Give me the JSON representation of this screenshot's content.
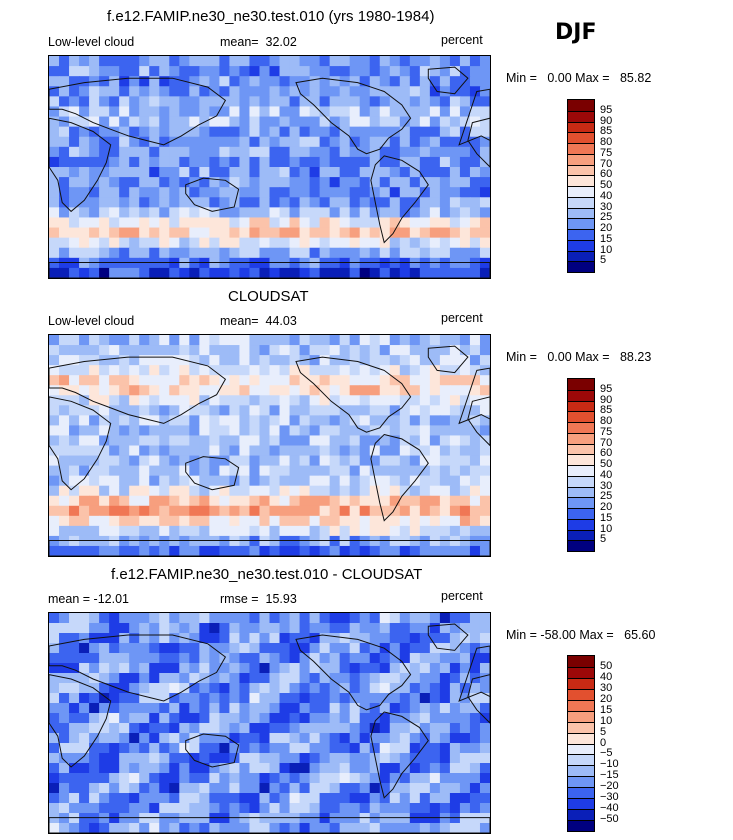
{
  "season": "DJF",
  "colors": {
    "abs": [
      "#000080",
      "#0a1fb8",
      "#1e3ce6",
      "#3c64f0",
      "#6e96f5",
      "#9dbbf7",
      "#c6d8fa",
      "#e8eefc",
      "#fde6da",
      "#fbc3aa",
      "#f79f7e",
      "#f07755",
      "#e2502f",
      "#c82a14",
      "#9c0808",
      "#7a0000"
    ],
    "diff": [
      "#000080",
      "#0a1fb8",
      "#1e3ce6",
      "#3c64f0",
      "#6e96f5",
      "#9dbbf7",
      "#c6d8fa",
      "#e8eefc",
      "#fde6da",
      "#fbc3aa",
      "#f79f7e",
      "#f07755",
      "#e2502f",
      "#c82a14",
      "#9c0808",
      "#7a0000"
    ]
  },
  "chart_data": [
    {
      "type": "heatmap",
      "title": "f.e12.FAMIP.ne30_ne30.test.010 (yrs 1980-1984)",
      "left_label": "Low-level cloud",
      "mean_label": "mean=",
      "mean_value": "32.02",
      "units": "percent",
      "min_label": "Min =",
      "min_value": "0.00",
      "max_label": "Max =",
      "max_value": "85.82",
      "colorbar_levels": [
        "95",
        "90",
        "85",
        "80",
        "75",
        "70",
        "60",
        "50",
        "40",
        "30",
        "25",
        "20",
        "15",
        "10",
        "5"
      ]
    },
    {
      "type": "heatmap",
      "title": "CLOUDSAT",
      "left_label": "Low-level cloud",
      "mean_label": "mean=",
      "mean_value": "44.03",
      "units": "percent",
      "min_label": "Min =",
      "min_value": "0.00",
      "max_label": "Max =",
      "max_value": "88.23",
      "colorbar_levels": [
        "95",
        "90",
        "85",
        "80",
        "75",
        "70",
        "60",
        "50",
        "40",
        "30",
        "25",
        "20",
        "15",
        "10",
        "5"
      ]
    },
    {
      "type": "heatmap",
      "title": "f.e12.FAMIP.ne30_ne30.test.010 - CLOUDSAT",
      "mean_label": "mean =",
      "mean_value": "-12.01",
      "rmse_label": "rmse =",
      "rmse_value": "15.93",
      "units": "percent",
      "min_label": "Min =",
      "min_value": "-58.00",
      "max_label": "Max =",
      "max_value": "65.60",
      "colorbar_levels": [
        "50",
        "40",
        "30",
        "20",
        "15",
        "10",
        "5",
        "0",
        "-5",
        "-10",
        "-15",
        "-20",
        "-30",
        "-40",
        "-50"
      ]
    }
  ]
}
